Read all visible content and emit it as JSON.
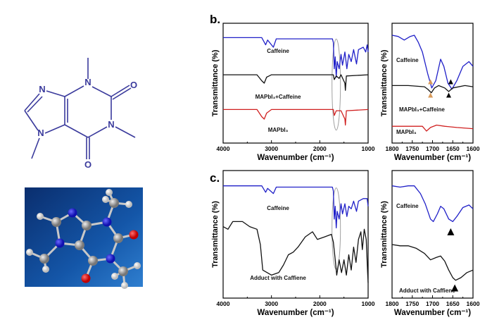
{
  "panel_labels": {
    "b": "b.",
    "c": "c."
  },
  "molecule": {
    "atoms": {
      "n": "N",
      "o": "O"
    },
    "color": "#3a3a9c"
  },
  "colors": {
    "caffeine": "#2020c8",
    "mixture": "#111111",
    "mapbi3": "#d02020",
    "ellipse": "#a0a0a0",
    "marker_orange": "#d89a5a",
    "marker_black": "#000000",
    "model_bg": "#0d3f86"
  },
  "chart_data": [
    {
      "type": "line",
      "panel": "b",
      "title": "",
      "xlabel": "Wavenumber (cm⁻¹)",
      "ylabel": "Transmittance (%)",
      "xlim": [
        4000,
        1000
      ],
      "xticks": [
        "4000",
        "3000",
        "2000",
        "1000"
      ],
      "grid": false,
      "y_ticks_shown": false,
      "annotations": [
        "ellipse near 1650 cm⁻¹"
      ],
      "series": [
        {
          "name": "Caffeine",
          "color": "#2020c8",
          "points": [
            [
              4000,
              88
            ],
            [
              3200,
              88
            ],
            [
              3120,
              82
            ],
            [
              3080,
              86
            ],
            [
              2960,
              80
            ],
            [
              2900,
              87
            ],
            [
              1740,
              87
            ],
            [
              1720,
              84
            ],
            [
              1700,
              62
            ],
            [
              1680,
              72
            ],
            [
              1660,
              55
            ],
            [
              1640,
              68
            ],
            [
              1600,
              62
            ],
            [
              1560,
              74
            ],
            [
              1530,
              65
            ],
            [
              1480,
              76
            ],
            [
              1440,
              62
            ],
            [
              1400,
              74
            ],
            [
              1350,
              68
            ],
            [
              1300,
              78
            ],
            [
              1240,
              66
            ],
            [
              1200,
              78
            ],
            [
              1100,
              80
            ],
            [
              1050,
              76
            ],
            [
              1020,
              82
            ],
            [
              1000,
              76
            ]
          ]
        },
        {
          "name": "MAPbI₃+Caffeine",
          "color": "#111111",
          "points": [
            [
              4000,
              57
            ],
            [
              3300,
              57
            ],
            [
              3200,
              52
            ],
            [
              3150,
              50
            ],
            [
              3100,
              55
            ],
            [
              3000,
              57
            ],
            [
              1720,
              57
            ],
            [
              1700,
              53
            ],
            [
              1660,
              56
            ],
            [
              1600,
              54
            ],
            [
              1560,
              57
            ],
            [
              1480,
              50
            ],
            [
              1470,
              44
            ],
            [
              1450,
              56
            ],
            [
              1000,
              57
            ]
          ]
        },
        {
          "name": "MAPbI₃",
          "color": "#d02020",
          "points": [
            [
              4000,
              28
            ],
            [
              3300,
              28
            ],
            [
              3200,
              22
            ],
            [
              3150,
              20
            ],
            [
              3100,
              25
            ],
            [
              3000,
              28
            ],
            [
              1720,
              28
            ],
            [
              1700,
              23
            ],
            [
              1660,
              27
            ],
            [
              1560,
              27
            ],
            [
              1480,
              20
            ],
            [
              1470,
              15
            ],
            [
              1450,
              27
            ],
            [
              1000,
              28
            ]
          ]
        }
      ]
    },
    {
      "type": "line",
      "panel": "b-zoom",
      "title": "",
      "xlabel": "Wavenumber (cm⁻¹)",
      "ylabel": "Transmittance (%)",
      "xlim": [
        1800,
        1600
      ],
      "xticks": [
        "1800",
        "1750",
        "1700",
        "1650",
        "1600"
      ],
      "grid": false,
      "y_ticks_shown": false,
      "markers": [
        {
          "x": 1705,
          "color": "#d89a5a"
        },
        {
          "x": 1705,
          "color": "#d89a5a"
        },
        {
          "x": 1655,
          "color": "#000000"
        },
        {
          "x": 1660,
          "color": "#000000"
        }
      ],
      "series": [
        {
          "name": "Caffeine",
          "color": "#2020c8",
          "points": [
            [
              1800,
              90
            ],
            [
              1785,
              89
            ],
            [
              1770,
              86
            ],
            [
              1755,
              89
            ],
            [
              1745,
              90
            ],
            [
              1735,
              84
            ],
            [
              1725,
              76
            ],
            [
              1712,
              58
            ],
            [
              1702,
              46
            ],
            [
              1692,
              52
            ],
            [
              1680,
              70
            ],
            [
              1672,
              64
            ],
            [
              1662,
              50
            ],
            [
              1652,
              45
            ],
            [
              1640,
              52
            ],
            [
              1625,
              64
            ],
            [
              1610,
              68
            ],
            [
              1600,
              64
            ]
          ]
        },
        {
          "name": "MAPbI₃+Caffeine",
          "color": "#111111",
          "points": [
            [
              1800,
              48
            ],
            [
              1760,
              48
            ],
            [
              1720,
              47
            ],
            [
              1712,
              45
            ],
            [
              1703,
              42
            ],
            [
              1695,
              46
            ],
            [
              1685,
              48
            ],
            [
              1670,
              46
            ],
            [
              1660,
              43
            ],
            [
              1650,
              46
            ],
            [
              1620,
              48
            ],
            [
              1600,
              47
            ]
          ]
        },
        {
          "name": "MAPbI₃",
          "color": "#d02020",
          "points": [
            [
              1800,
              14
            ],
            [
              1725,
              14
            ],
            [
              1715,
              10
            ],
            [
              1705,
              13
            ],
            [
              1690,
              15
            ],
            [
              1670,
              14
            ],
            [
              1640,
              13
            ],
            [
              1600,
              12
            ]
          ]
        }
      ]
    },
    {
      "type": "line",
      "panel": "c",
      "title": "",
      "xlabel": "Wavenumber (cm⁻¹)",
      "ylabel": "Transmittance (%)",
      "xlim": [
        4000,
        1000
      ],
      "xticks": [
        "4000",
        "3000",
        "2000",
        "1000"
      ],
      "grid": false,
      "y_ticks_shown": false,
      "annotations": [
        "ellipse near 1650 cm⁻¹"
      ],
      "series": [
        {
          "name": "Caffeine",
          "color": "#2020c8",
          "points": [
            [
              4000,
              88
            ],
            [
              3200,
              88
            ],
            [
              3120,
              83
            ],
            [
              3080,
              86
            ],
            [
              2960,
              82
            ],
            [
              2900,
              87
            ],
            [
              1740,
              87
            ],
            [
              1720,
              84
            ],
            [
              1700,
              62
            ],
            [
              1680,
              72
            ],
            [
              1660,
              55
            ],
            [
              1640,
              68
            ],
            [
              1600,
              62
            ],
            [
              1560,
              74
            ],
            [
              1530,
              66
            ],
            [
              1480,
              74
            ],
            [
              1440,
              64
            ],
            [
              1400,
              72
            ],
            [
              1350,
              70
            ],
            [
              1300,
              76
            ],
            [
              1240,
              68
            ],
            [
              1200,
              76
            ],
            [
              1100,
              78
            ],
            [
              1020,
              78
            ],
            [
              1000,
              72
            ]
          ]
        },
        {
          "name": "Adduct with Caffiene",
          "color": "#111111",
          "points": [
            [
              4000,
              56
            ],
            [
              3900,
              54
            ],
            [
              3800,
              60
            ],
            [
              3600,
              60
            ],
            [
              3450,
              56
            ],
            [
              3300,
              54
            ],
            [
              3230,
              42
            ],
            [
              3180,
              22
            ],
            [
              3000,
              18
            ],
            [
              2850,
              20
            ],
            [
              2750,
              26
            ],
            [
              2650,
              34
            ],
            [
              2550,
              36
            ],
            [
              2450,
              40
            ],
            [
              2300,
              48
            ],
            [
              2150,
              52
            ],
            [
              2050,
              46
            ],
            [
              1900,
              48
            ],
            [
              1760,
              50
            ],
            [
              1720,
              44
            ],
            [
              1680,
              30
            ],
            [
              1650,
              18
            ],
            [
              1600,
              30
            ],
            [
              1550,
              20
            ],
            [
              1500,
              30
            ],
            [
              1450,
              18
            ],
            [
              1400,
              34
            ],
            [
              1350,
              22
            ],
            [
              1300,
              40
            ],
            [
              1250,
              28
            ],
            [
              1200,
              46
            ],
            [
              1150,
              52
            ],
            [
              1120,
              38
            ],
            [
              1080,
              54
            ],
            [
              1040,
              46
            ],
            [
              1010,
              20
            ],
            [
              1000,
              12
            ]
          ]
        }
      ]
    },
    {
      "type": "line",
      "panel": "c-zoom",
      "title": "",
      "xlabel": "Wavenumber (cm⁻¹)",
      "ylabel": "Transmittance (%)",
      "xlim": [
        1800,
        1600
      ],
      "xticks": [
        "1800",
        "1750",
        "1700",
        "1650",
        "1600"
      ],
      "grid": false,
      "y_ticks_shown": false,
      "markers": [
        {
          "x": 1655,
          "color": "#000000"
        },
        {
          "x": 1645,
          "color": "#000000"
        }
      ],
      "series": [
        {
          "name": "Caffeine",
          "color": "#2020c8",
          "points": [
            [
              1800,
              88
            ],
            [
              1780,
              87
            ],
            [
              1760,
              88
            ],
            [
              1745,
              88
            ],
            [
              1730,
              82
            ],
            [
              1718,
              74
            ],
            [
              1705,
              62
            ],
            [
              1698,
              60
            ],
            [
              1688,
              66
            ],
            [
              1680,
              72
            ],
            [
              1672,
              70
            ],
            [
              1660,
              62
            ],
            [
              1650,
              60
            ],
            [
              1640,
              64
            ],
            [
              1625,
              71
            ],
            [
              1610,
              73
            ],
            [
              1600,
              70
            ]
          ]
        },
        {
          "name": "Adduct with Caffiene",
          "color": "#111111",
          "points": [
            [
              1800,
              42
            ],
            [
              1780,
              41
            ],
            [
              1760,
              41
            ],
            [
              1740,
              39
            ],
            [
              1720,
              35
            ],
            [
              1705,
              30
            ],
            [
              1690,
              32
            ],
            [
              1680,
              33
            ],
            [
              1670,
              29
            ],
            [
              1660,
              22
            ],
            [
              1650,
              16
            ],
            [
              1643,
              14
            ],
            [
              1630,
              16
            ],
            [
              1615,
              20
            ],
            [
              1600,
              22
            ]
          ]
        }
      ]
    }
  ]
}
